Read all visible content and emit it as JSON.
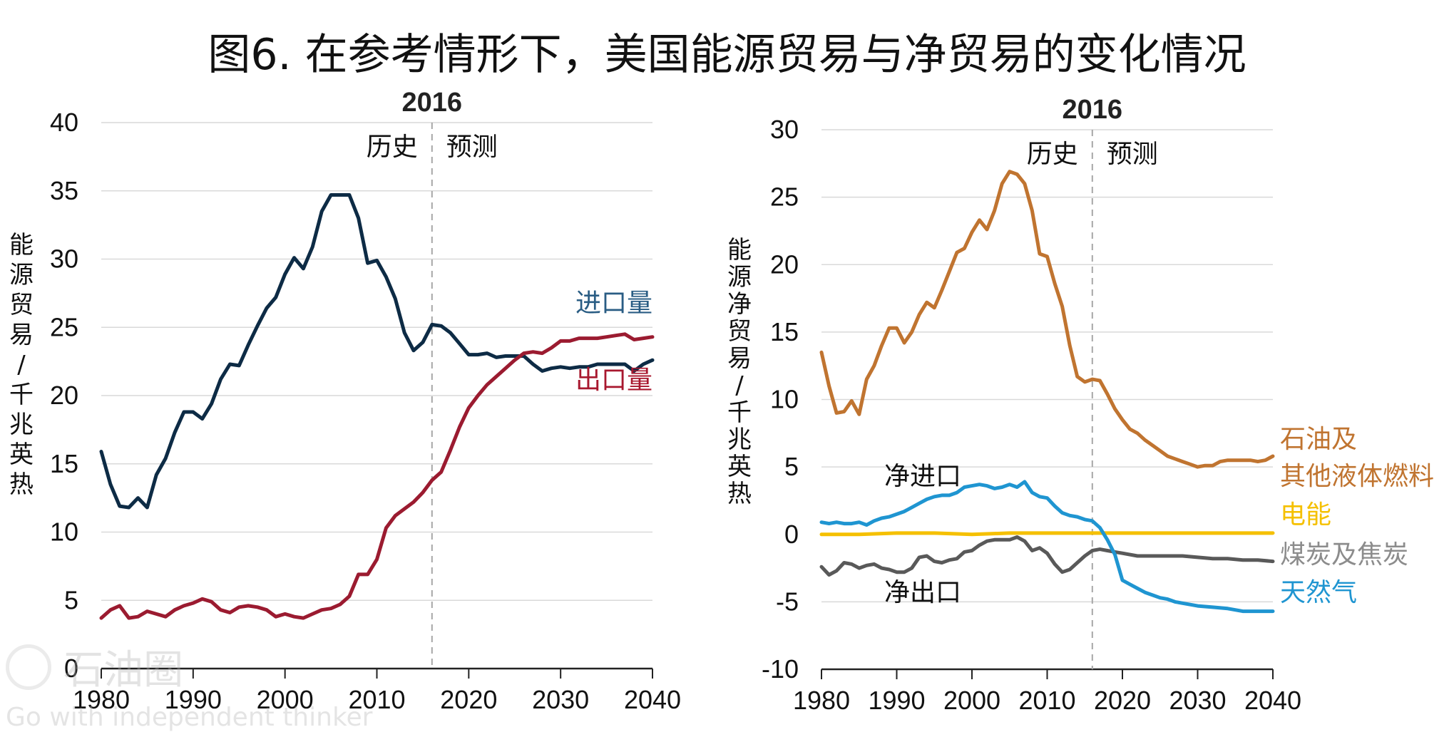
{
  "title": "图6. 在参考情形下，美国能源贸易与净贸易的变化情况",
  "watermark": {
    "name": "石油圈",
    "slogan": "Go with independent thinker"
  },
  "chart_data": [
    {
      "type": "line",
      "ylabel": "能源贸易/千兆英热",
      "xlim": [
        1980,
        2040
      ],
      "ylim": [
        0,
        40
      ],
      "yticks": [
        0,
        5,
        10,
        15,
        20,
        25,
        30,
        35,
        40
      ],
      "xticks": [
        1980,
        1990,
        2000,
        2010,
        2020,
        2030,
        2040
      ],
      "vline": {
        "x": 2016,
        "label": "2016",
        "left_label": "历史",
        "right_label": "预测"
      },
      "grid": true,
      "series": [
        {
          "name": "进口量",
          "color": "#0d2b45",
          "label_color": "#2a5d84",
          "x": [
            1980,
            1981,
            1982,
            1983,
            1984,
            1985,
            1986,
            1987,
            1988,
            1989,
            1990,
            1991,
            1992,
            1993,
            1994,
            1995,
            1996,
            1997,
            1998,
            1999,
            2000,
            2001,
            2002,
            2003,
            2004,
            2005,
            2006,
            2007,
            2008,
            2009,
            2010,
            2011,
            2012,
            2013,
            2014,
            2015,
            2016,
            2017,
            2018,
            2019,
            2020,
            2021,
            2022,
            2023,
            2024,
            2025,
            2026,
            2027,
            2028,
            2029,
            2030,
            2031,
            2032,
            2033,
            2034,
            2035,
            2036,
            2037,
            2038,
            2039,
            2040
          ],
          "values": [
            15.9,
            13.5,
            11.9,
            11.8,
            12.5,
            11.8,
            14.2,
            15.4,
            17.3,
            18.8,
            18.8,
            18.3,
            19.4,
            21.2,
            22.3,
            22.2,
            23.7,
            25.1,
            26.4,
            27.2,
            28.9,
            30.1,
            29.3,
            30.9,
            33.5,
            34.7,
            34.7,
            34.7,
            33.0,
            29.7,
            29.9,
            28.7,
            27.1,
            24.6,
            23.3,
            23.9,
            25.2,
            25.1,
            24.6,
            23.8,
            23.0,
            23.0,
            23.1,
            22.8,
            22.9,
            22.9,
            22.9,
            22.3,
            21.8,
            22.0,
            22.1,
            22.0,
            22.1,
            22.1,
            22.3,
            22.3,
            22.3,
            22.3,
            21.8,
            22.3,
            22.6
          ]
        },
        {
          "name": "出口量",
          "color": "#9b1b30",
          "label_color": "#a8182f",
          "x": [
            1980,
            1981,
            1982,
            1983,
            1984,
            1985,
            1986,
            1987,
            1988,
            1989,
            1990,
            1991,
            1992,
            1993,
            1994,
            1995,
            1996,
            1997,
            1998,
            1999,
            2000,
            2001,
            2002,
            2003,
            2004,
            2005,
            2006,
            2007,
            2008,
            2009,
            2010,
            2011,
            2012,
            2013,
            2014,
            2015,
            2016,
            2017,
            2018,
            2019,
            2020,
            2021,
            2022,
            2023,
            2024,
            2025,
            2026,
            2027,
            2028,
            2029,
            2030,
            2031,
            2032,
            2033,
            2034,
            2035,
            2036,
            2037,
            2038,
            2039,
            2040
          ],
          "values": [
            3.7,
            4.3,
            4.6,
            3.7,
            3.8,
            4.2,
            4.0,
            3.8,
            4.3,
            4.6,
            4.8,
            5.1,
            4.9,
            4.3,
            4.1,
            4.5,
            4.6,
            4.5,
            4.3,
            3.8,
            4.0,
            3.8,
            3.7,
            4.0,
            4.3,
            4.4,
            4.7,
            5.3,
            6.9,
            6.9,
            8.0,
            10.3,
            11.2,
            11.7,
            12.2,
            12.9,
            13.8,
            14.4,
            16.0,
            17.7,
            19.1,
            20.0,
            20.8,
            21.4,
            22.0,
            22.6,
            23.1,
            23.2,
            23.1,
            23.5,
            24.0,
            24.0,
            24.2,
            24.2,
            24.2,
            24.3,
            24.4,
            24.5,
            24.1,
            24.2,
            24.3
          ]
        }
      ]
    },
    {
      "type": "line",
      "ylabel": "能源净贸易/千兆英热",
      "xlim": [
        1980,
        2040
      ],
      "ylim": [
        -10,
        30
      ],
      "yticks": [
        -10,
        -5,
        0,
        5,
        10,
        15,
        20,
        25,
        30
      ],
      "xticks": [
        1980,
        1990,
        2000,
        2010,
        2020,
        2030,
        2040
      ],
      "vline": {
        "x": 2016,
        "label": "2016",
        "left_label": "历史",
        "right_label": "预测"
      },
      "grid": true,
      "annotations": {
        "upper": "净进口",
        "lower": "净出口"
      },
      "series": [
        {
          "name": "石油及\n其他液体燃料",
          "color": "#c07430",
          "x": [
            1980,
            1981,
            1982,
            1983,
            1984,
            1985,
            1986,
            1987,
            1988,
            1989,
            1990,
            1991,
            1992,
            1993,
            1994,
            1995,
            1996,
            1997,
            1998,
            1999,
            2000,
            2001,
            2002,
            2003,
            2004,
            2005,
            2006,
            2007,
            2008,
            2009,
            2010,
            2011,
            2012,
            2013,
            2014,
            2015,
            2016,
            2017,
            2018,
            2019,
            2020,
            2021,
            2022,
            2023,
            2024,
            2025,
            2026,
            2027,
            2028,
            2029,
            2030,
            2031,
            2032,
            2033,
            2034,
            2035,
            2036,
            2037,
            2038,
            2039,
            2040
          ],
          "values": [
            13.5,
            11.0,
            9.0,
            9.1,
            9.9,
            8.9,
            11.5,
            12.5,
            14.0,
            15.3,
            15.3,
            14.2,
            15.0,
            16.3,
            17.2,
            16.8,
            18.1,
            19.5,
            20.9,
            21.2,
            22.4,
            23.3,
            22.6,
            24.0,
            26.0,
            26.9,
            26.7,
            26.0,
            24.0,
            20.8,
            20.6,
            18.6,
            16.9,
            14.0,
            11.7,
            11.3,
            11.5,
            11.4,
            10.4,
            9.3,
            8.5,
            7.8,
            7.5,
            7.0,
            6.6,
            6.2,
            5.8,
            5.6,
            5.4,
            5.2,
            5.0,
            5.1,
            5.1,
            5.4,
            5.5,
            5.5,
            5.5,
            5.5,
            5.4,
            5.5,
            5.8
          ]
        },
        {
          "name": "电能",
          "color": "#f5c000",
          "x": [
            1980,
            1985,
            1990,
            1995,
            2000,
            2005,
            2010,
            2015,
            2016,
            2020,
            2025,
            2030,
            2035,
            2040
          ],
          "values": [
            0.0,
            0.0,
            0.1,
            0.1,
            0.0,
            0.1,
            0.1,
            0.1,
            0.1,
            0.1,
            0.1,
            0.1,
            0.1,
            0.1
          ]
        },
        {
          "name": "煤炭及焦炭",
          "color": "#595959",
          "label_color": "#8c8c8c",
          "x": [
            1980,
            1981,
            1982,
            1983,
            1984,
            1985,
            1986,
            1987,
            1988,
            1989,
            1990,
            1991,
            1992,
            1993,
            1994,
            1995,
            1996,
            1997,
            1998,
            1999,
            2000,
            2001,
            2002,
            2003,
            2004,
            2005,
            2006,
            2007,
            2008,
            2009,
            2010,
            2011,
            2012,
            2013,
            2014,
            2015,
            2016,
            2017,
            2018,
            2019,
            2020,
            2022,
            2024,
            2026,
            2028,
            2030,
            2032,
            2034,
            2036,
            2038,
            2040
          ],
          "values": [
            -2.4,
            -3.0,
            -2.7,
            -2.1,
            -2.2,
            -2.5,
            -2.3,
            -2.2,
            -2.5,
            -2.6,
            -2.8,
            -2.8,
            -2.5,
            -1.7,
            -1.6,
            -2.0,
            -2.1,
            -1.9,
            -1.8,
            -1.3,
            -1.2,
            -0.8,
            -0.5,
            -0.4,
            -0.4,
            -0.4,
            -0.2,
            -0.5,
            -1.2,
            -1.0,
            -1.4,
            -2.2,
            -2.8,
            -2.6,
            -2.1,
            -1.6,
            -1.2,
            -1.1,
            -1.2,
            -1.3,
            -1.4,
            -1.6,
            -1.6,
            -1.6,
            -1.6,
            -1.7,
            -1.8,
            -1.8,
            -1.9,
            -1.9,
            -2.0
          ]
        },
        {
          "name": "天然气",
          "color": "#1f95d1",
          "label_color": "#1f95d1",
          "x": [
            1980,
            1981,
            1982,
            1983,
            1984,
            1985,
            1986,
            1987,
            1988,
            1989,
            1990,
            1991,
            1992,
            1993,
            1994,
            1995,
            1996,
            1997,
            1998,
            1999,
            2000,
            2001,
            2002,
            2003,
            2004,
            2005,
            2006,
            2007,
            2008,
            2009,
            2010,
            2011,
            2012,
            2013,
            2014,
            2015,
            2016,
            2017,
            2018,
            2019,
            2020,
            2021,
            2022,
            2023,
            2024,
            2025,
            2026,
            2027,
            2028,
            2029,
            2030,
            2032,
            2034,
            2036,
            2038,
            2040
          ],
          "values": [
            0.9,
            0.8,
            0.9,
            0.8,
            0.8,
            0.9,
            0.7,
            1.0,
            1.2,
            1.3,
            1.5,
            1.7,
            2.0,
            2.3,
            2.6,
            2.8,
            2.9,
            2.9,
            3.1,
            3.5,
            3.6,
            3.7,
            3.6,
            3.4,
            3.5,
            3.7,
            3.5,
            3.9,
            3.1,
            2.8,
            2.7,
            2.1,
            1.6,
            1.4,
            1.3,
            1.1,
            1.0,
            0.5,
            -0.4,
            -1.5,
            -3.4,
            -3.7,
            -4.0,
            -4.3,
            -4.5,
            -4.7,
            -4.8,
            -5.0,
            -5.1,
            -5.2,
            -5.3,
            -5.4,
            -5.5,
            -5.7,
            -5.7,
            -5.7
          ]
        }
      ]
    }
  ]
}
